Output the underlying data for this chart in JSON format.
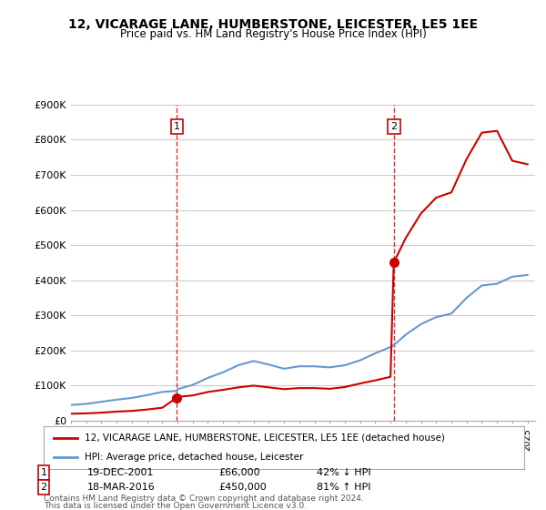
{
  "title": "12, VICARAGE LANE, HUMBERSTONE, LEICESTER, LE5 1EE",
  "subtitle": "Price paid vs. HM Land Registry's House Price Index (HPI)",
  "sale1_date": 2001.96,
  "sale1_price": 66000,
  "sale1_label": "1",
  "sale1_text": "19-DEC-2001",
  "sale1_amount": "£66,000",
  "sale1_hpi": "42% ↓ HPI",
  "sale2_date": 2016.21,
  "sale2_price": 450000,
  "sale2_label": "2",
  "sale2_text": "18-MAR-2016",
  "sale2_amount": "£450,000",
  "sale2_hpi": "81% ↑ HPI",
  "xmin": 1995,
  "xmax": 2025.5,
  "ymin": 0,
  "ymax": 900000,
  "yticks": [
    0,
    100000,
    200000,
    300000,
    400000,
    500000,
    600000,
    700000,
    800000,
    900000
  ],
  "ylabel_format": "£{0}K",
  "legend_label1": "12, VICARAGE LANE, HUMBERSTONE, LEICESTER, LE5 1EE (detached house)",
  "legend_label2": "HPI: Average price, detached house, Leicester",
  "footer1": "Contains HM Land Registry data © Crown copyright and database right 2024.",
  "footer2": "This data is licensed under the Open Government Licence v3.0.",
  "sale_color": "#cc0000",
  "hpi_color": "#6699cc",
  "vline_color": "#cc0000",
  "bg_color": "#ffffff",
  "grid_color": "#cccccc",
  "hpi_years": [
    1995,
    1996,
    1997,
    1998,
    1999,
    2000,
    2001,
    2001.96,
    2002,
    2003,
    2004,
    2005,
    2006,
    2007,
    2008,
    2009,
    2010,
    2011,
    2012,
    2013,
    2014,
    2015,
    2016,
    2016.21,
    2017,
    2018,
    2019,
    2020,
    2021,
    2022,
    2023,
    2024,
    2025
  ],
  "hpi_values": [
    45000,
    48000,
    54000,
    60000,
    65000,
    73000,
    82000,
    85000,
    90000,
    102000,
    122000,
    138000,
    158000,
    170000,
    160000,
    148000,
    155000,
    155000,
    152000,
    158000,
    172000,
    192000,
    210000,
    215000,
    245000,
    275000,
    295000,
    305000,
    350000,
    385000,
    390000,
    410000,
    415000
  ],
  "sale_years": [
    1995,
    1996,
    1997,
    1998,
    1999,
    2000,
    2001,
    2001.96,
    2002,
    2003,
    2004,
    2005,
    2006,
    2007,
    2008,
    2009,
    2010,
    2011,
    2012,
    2013,
    2014,
    2015,
    2016,
    2016.21,
    2017,
    2018,
    2019,
    2020,
    2021,
    2022,
    2023,
    2024,
    2025
  ],
  "sale_values": [
    20000,
    21000,
    23000,
    26000,
    28000,
    32000,
    37000,
    66000,
    68000,
    72000,
    82000,
    88000,
    95000,
    100000,
    95000,
    90000,
    93000,
    93000,
    91000,
    96000,
    106000,
    115000,
    125000,
    450000,
    520000,
    590000,
    635000,
    650000,
    745000,
    820000,
    825000,
    740000,
    730000
  ]
}
